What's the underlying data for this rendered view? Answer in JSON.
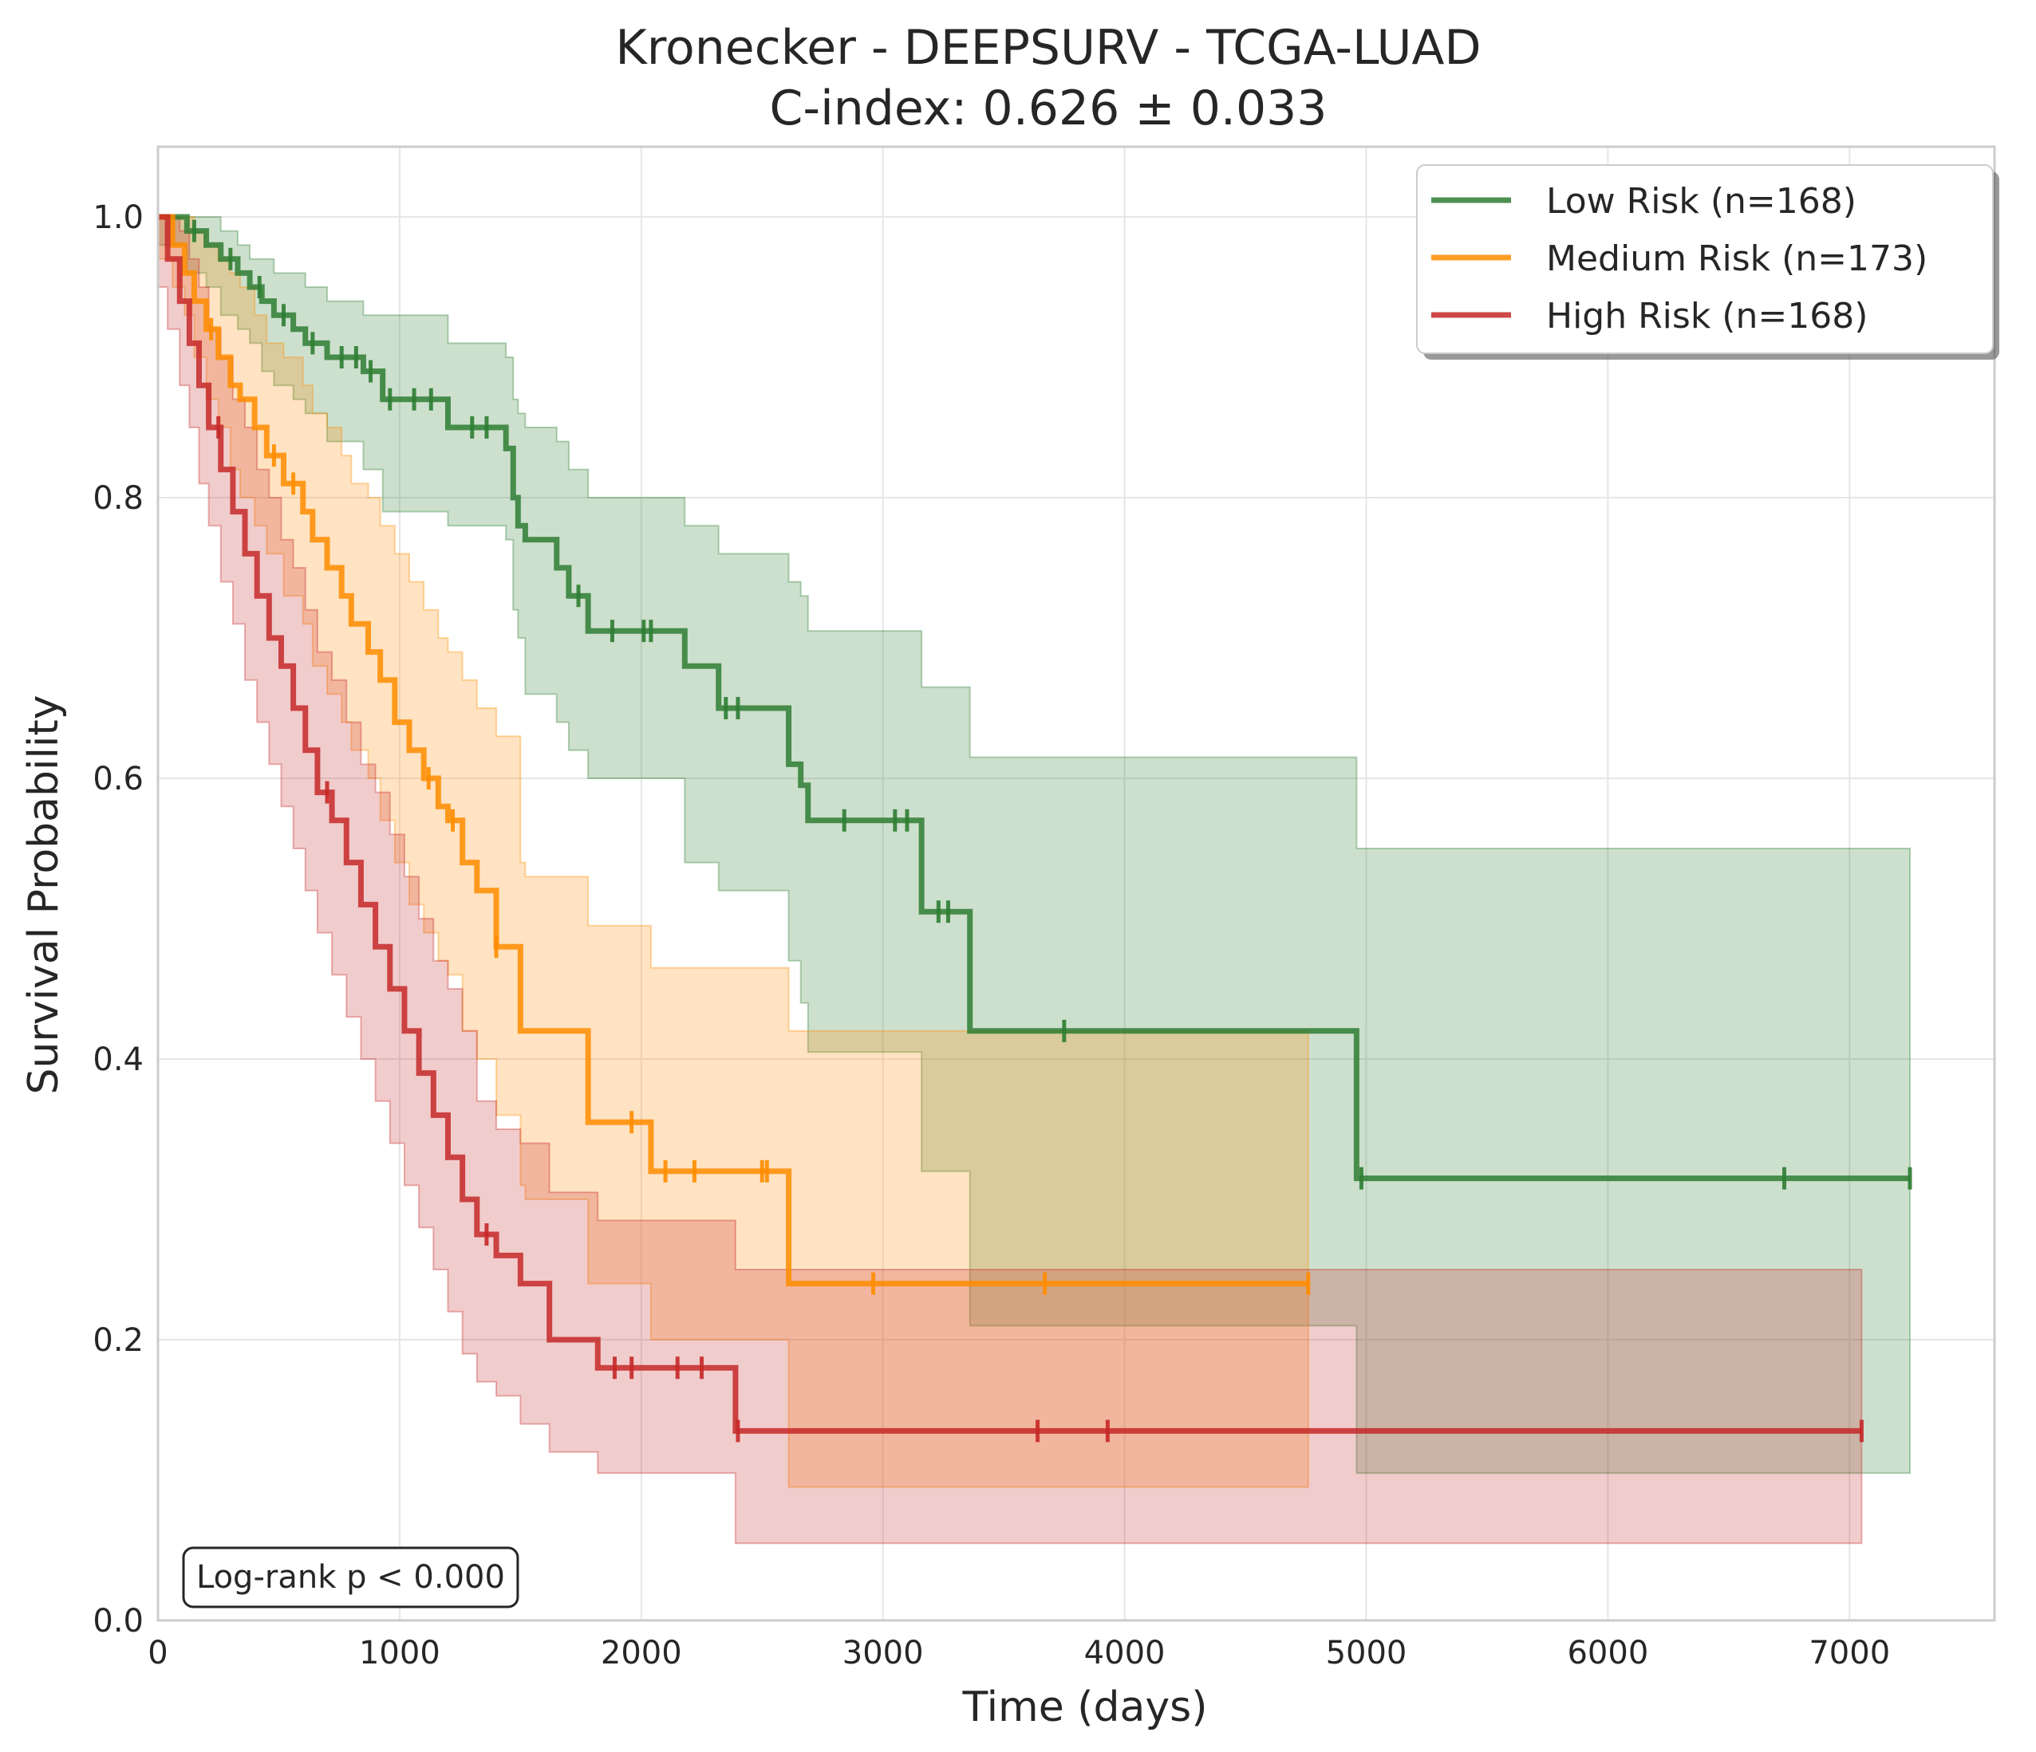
{
  "chart_data": {
    "type": "line",
    "title": "Kronecker - DEEPSURV - TCGA-LUAD",
    "subtitle": "C-index: 0.626 ± 0.033",
    "xlabel": "Time (days)",
    "ylabel": "Survival Probability",
    "xlim": [
      0,
      7600
    ],
    "ylim": [
      0,
      1.05
    ],
    "xticks": [
      0,
      1000,
      2000,
      3000,
      4000,
      5000,
      6000,
      7000
    ],
    "yticks": [
      0.0,
      0.2,
      0.4,
      0.6,
      0.8,
      1.0
    ],
    "xtick_labels": [
      "0",
      "1000",
      "2000",
      "3000",
      "4000",
      "5000",
      "6000",
      "7000"
    ],
    "ytick_labels": [
      "0.0",
      "0.2",
      "0.4",
      "0.6",
      "0.8",
      "1.0"
    ],
    "grid": true,
    "legend_position": "top-right",
    "annotation": "Log-rank p < 0.000",
    "series": [
      {
        "name": "Low Risk (n=168)",
        "color": "#2e7d32",
        "x": [
          0,
          120,
          200,
          260,
          330,
          380,
          430,
          480,
          560,
          610,
          700,
          850,
          930,
          1200,
          1440,
          1470,
          1490,
          1520,
          1650,
          1700,
          1780,
          2180,
          2320,
          2610,
          2660,
          2690,
          3160,
          3360,
          4960,
          7250
        ],
        "y": [
          1.0,
          0.99,
          0.98,
          0.97,
          0.96,
          0.95,
          0.94,
          0.93,
          0.92,
          0.91,
          0.9,
          0.89,
          0.87,
          0.85,
          0.835,
          0.8,
          0.78,
          0.77,
          0.75,
          0.73,
          0.705,
          0.68,
          0.65,
          0.61,
          0.595,
          0.57,
          0.505,
          0.42,
          0.315,
          0.315
        ],
        "ci_lower": [
          0.98,
          0.96,
          0.95,
          0.93,
          0.92,
          0.91,
          0.89,
          0.88,
          0.87,
          0.86,
          0.84,
          0.82,
          0.79,
          0.78,
          0.77,
          0.72,
          0.7,
          0.66,
          0.64,
          0.62,
          0.6,
          0.54,
          0.52,
          0.47,
          0.44,
          0.405,
          0.32,
          0.21,
          0.105,
          0.105
        ],
        "ci_upper": [
          1.0,
          1.0,
          1.0,
          0.99,
          0.98,
          0.97,
          0.97,
          0.96,
          0.96,
          0.95,
          0.94,
          0.93,
          0.93,
          0.91,
          0.9,
          0.87,
          0.86,
          0.85,
          0.84,
          0.82,
          0.8,
          0.78,
          0.76,
          0.74,
          0.73,
          0.705,
          0.665,
          0.615,
          0.55,
          0.55
        ],
        "censor_x": [
          150,
          300,
          420,
          520,
          640,
          760,
          820,
          880,
          960,
          1060,
          1130,
          1300,
          1360,
          1740,
          1880,
          2010,
          2040,
          2350,
          2400,
          2840,
          3050,
          3100,
          3230,
          3270,
          3750,
          4980,
          6730,
          7250
        ]
      },
      {
        "name": "Medium Risk (n=173)",
        "color": "#ff8c00",
        "x": [
          0,
          60,
          110,
          150,
          200,
          250,
          300,
          340,
          400,
          450,
          520,
          600,
          640,
          700,
          760,
          800,
          870,
          920,
          980,
          1040,
          1100,
          1160,
          1200,
          1260,
          1320,
          1400,
          1500,
          1520,
          1780,
          2040,
          2610,
          4760
        ],
        "y": [
          1.0,
          0.98,
          0.96,
          0.94,
          0.92,
          0.9,
          0.88,
          0.87,
          0.85,
          0.83,
          0.81,
          0.79,
          0.77,
          0.75,
          0.73,
          0.71,
          0.69,
          0.67,
          0.64,
          0.62,
          0.6,
          0.58,
          0.57,
          0.54,
          0.52,
          0.48,
          0.42,
          0.42,
          0.355,
          0.32,
          0.24,
          0.24
        ],
        "ci_lower": [
          0.97,
          0.95,
          0.93,
          0.9,
          0.87,
          0.85,
          0.82,
          0.8,
          0.78,
          0.76,
          0.73,
          0.71,
          0.68,
          0.66,
          0.64,
          0.62,
          0.6,
          0.57,
          0.54,
          0.51,
          0.49,
          0.47,
          0.46,
          0.42,
          0.4,
          0.36,
          0.31,
          0.3,
          0.24,
          0.2,
          0.095,
          0.095
        ],
        "ci_upper": [
          1.0,
          1.0,
          1.0,
          0.99,
          0.98,
          0.97,
          0.96,
          0.95,
          0.93,
          0.91,
          0.9,
          0.88,
          0.86,
          0.85,
          0.83,
          0.81,
          0.8,
          0.78,
          0.76,
          0.74,
          0.72,
          0.7,
          0.69,
          0.67,
          0.65,
          0.63,
          0.54,
          0.53,
          0.495,
          0.465,
          0.42,
          0.42
        ],
        "censor_x": [
          220,
          480,
          560,
          1120,
          1220,
          1400,
          1960,
          2100,
          2220,
          2500,
          2520,
          2960,
          3670,
          4760
        ]
      },
      {
        "name": "High Risk (n=168)",
        "color": "#c62828",
        "x": [
          0,
          40,
          90,
          130,
          170,
          210,
          260,
          310,
          360,
          410,
          460,
          510,
          560,
          610,
          660,
          720,
          780,
          840,
          900,
          960,
          1020,
          1080,
          1140,
          1200,
          1260,
          1320,
          1400,
          1500,
          1620,
          1820,
          2390,
          7050
        ],
        "y": [
          1.0,
          0.97,
          0.94,
          0.91,
          0.88,
          0.85,
          0.82,
          0.79,
          0.76,
          0.73,
          0.7,
          0.68,
          0.65,
          0.62,
          0.59,
          0.57,
          0.54,
          0.51,
          0.48,
          0.45,
          0.42,
          0.39,
          0.36,
          0.33,
          0.3,
          0.275,
          0.26,
          0.24,
          0.2,
          0.18,
          0.135,
          0.135
        ],
        "ci_lower": [
          0.95,
          0.92,
          0.88,
          0.85,
          0.81,
          0.78,
          0.74,
          0.71,
          0.67,
          0.64,
          0.61,
          0.58,
          0.55,
          0.52,
          0.49,
          0.46,
          0.43,
          0.4,
          0.37,
          0.34,
          0.31,
          0.28,
          0.25,
          0.22,
          0.19,
          0.17,
          0.16,
          0.14,
          0.12,
          0.105,
          0.055,
          0.055
        ],
        "ci_upper": [
          1.0,
          1.0,
          0.99,
          0.97,
          0.95,
          0.92,
          0.9,
          0.87,
          0.85,
          0.82,
          0.8,
          0.77,
          0.75,
          0.72,
          0.69,
          0.67,
          0.64,
          0.61,
          0.59,
          0.56,
          0.53,
          0.5,
          0.47,
          0.45,
          0.42,
          0.37,
          0.35,
          0.34,
          0.305,
          0.285,
          0.25,
          0.25
        ],
        "censor_x": [
          250,
          700,
          1360,
          1890,
          1960,
          2150,
          2250,
          2400,
          3640,
          3930,
          7050
        ]
      }
    ]
  }
}
